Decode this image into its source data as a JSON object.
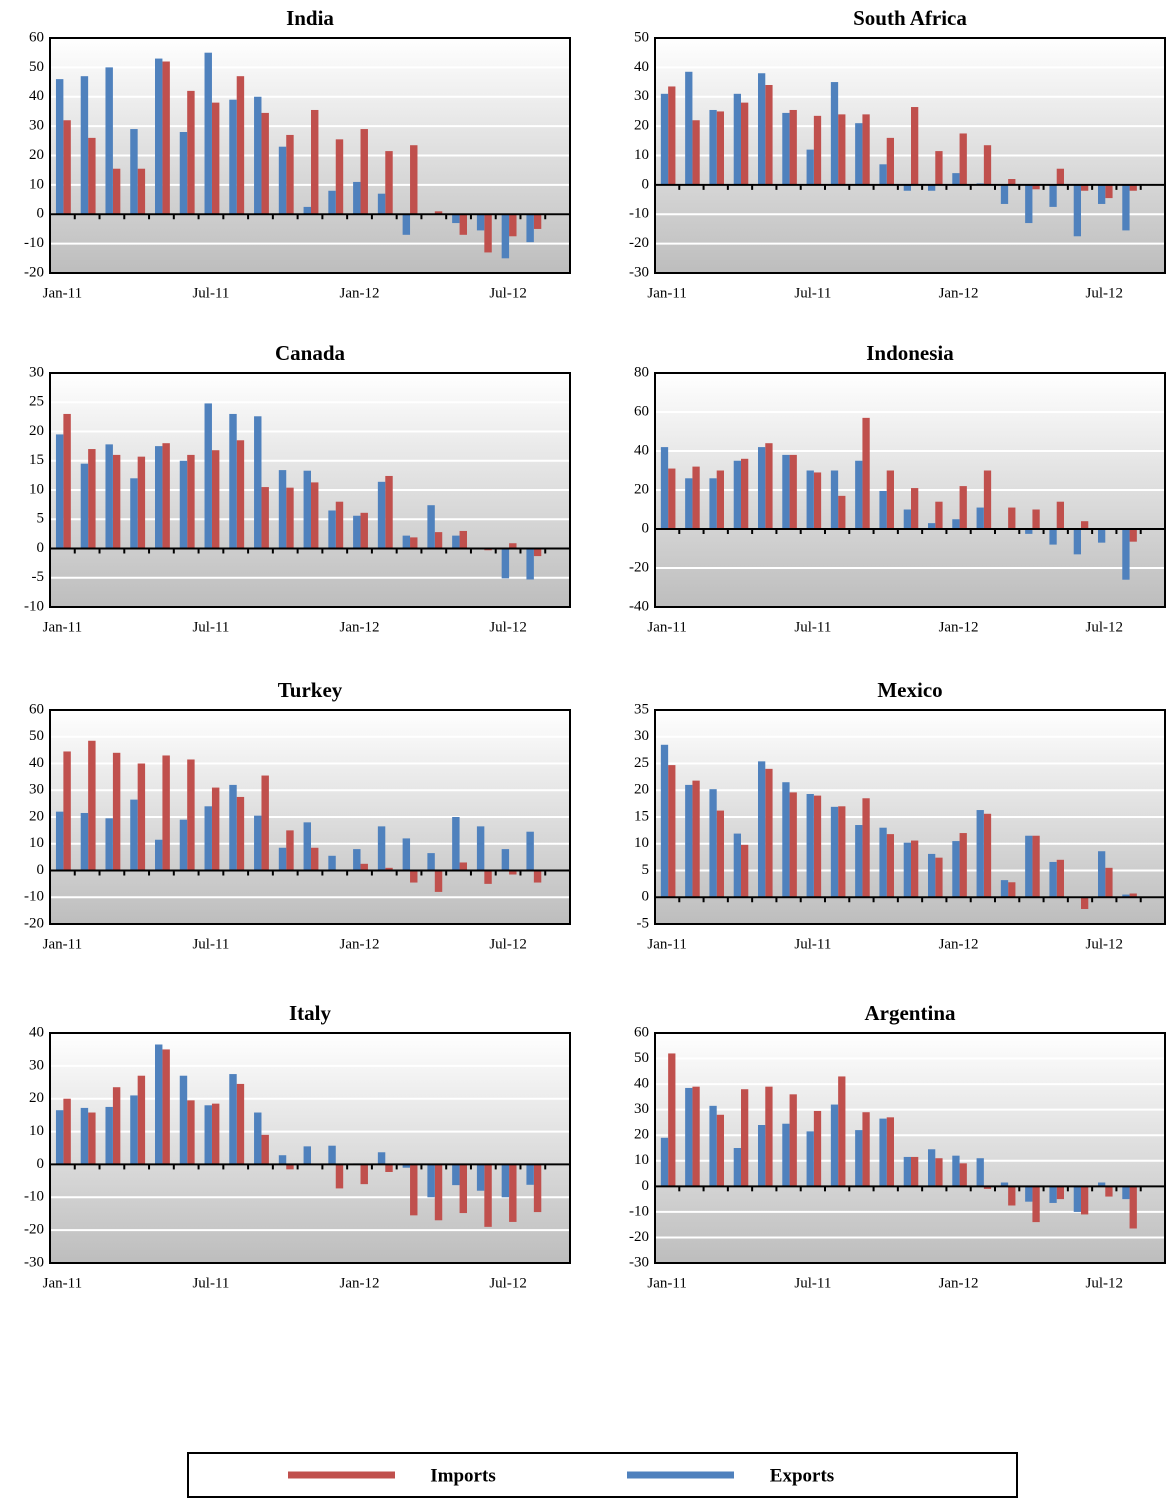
{
  "chart_data": [
    {
      "type": "bar",
      "title": "India",
      "categories": [
        "Jan-11",
        null,
        null,
        null,
        null,
        null,
        "Jul-11",
        null,
        null,
        null,
        null,
        null,
        "Jan-12",
        null,
        null,
        null,
        null,
        null,
        "Jul-12",
        null
      ],
      "series": [
        {
          "name": "Imports",
          "color": "#c0504d",
          "values": [
            32,
            26,
            15.5,
            15.5,
            52,
            42,
            38,
            47,
            34.5,
            27,
            35.5,
            25.5,
            29,
            21.5,
            23.5,
            1,
            -7,
            -13,
            -7.5,
            -5
          ]
        },
        {
          "name": "Exports",
          "color": "#4f81bd",
          "values": [
            46,
            47,
            50,
            29,
            53,
            28,
            55,
            39,
            40,
            23,
            2.5,
            8,
            11,
            7,
            -7,
            0,
            -3,
            -5.5,
            -15,
            -9.5
          ]
        }
      ],
      "ylim": [
        -20,
        60
      ],
      "yticks": [
        -20,
        -10,
        0,
        10,
        20,
        30,
        40,
        50,
        60
      ]
    },
    {
      "type": "bar",
      "title": "South Africa",
      "categories": [
        "Jan-11",
        null,
        null,
        null,
        null,
        null,
        "Jul-11",
        null,
        null,
        null,
        null,
        null,
        "Jan-12",
        null,
        null,
        null,
        null,
        null,
        "Jul-12",
        null
      ],
      "series": [
        {
          "name": "Imports",
          "color": "#c0504d",
          "values": [
            33.5,
            22,
            25,
            28,
            34,
            25.5,
            23.5,
            24,
            24,
            16,
            26.5,
            11.5,
            17.5,
            13.5,
            2,
            -1.5,
            5.5,
            -2,
            -4.5,
            -2
          ]
        },
        {
          "name": "Exports",
          "color": "#4f81bd",
          "values": [
            31,
            38.5,
            25.5,
            31,
            38,
            24.5,
            12,
            35,
            21,
            7,
            -2,
            -2,
            4,
            0.5,
            -6.5,
            -13,
            -7.5,
            -17.5,
            -6.5,
            -15.5
          ]
        }
      ],
      "ylim": [
        -30,
        50
      ],
      "yticks": [
        -30,
        -20,
        -10,
        0,
        10,
        20,
        30,
        40,
        50
      ]
    },
    {
      "type": "bar",
      "title": "Canada",
      "categories": [
        "Jan-11",
        null,
        null,
        null,
        null,
        null,
        "Jul-11",
        null,
        null,
        null,
        null,
        null,
        "Jan-12",
        null,
        null,
        null,
        null,
        null,
        "Jul-12",
        null
      ],
      "series": [
        {
          "name": "Imports",
          "color": "#c0504d",
          "values": [
            23,
            17,
            16,
            15.7,
            18,
            16,
            16.8,
            18.5,
            10.5,
            10.4,
            11.3,
            8,
            6.1,
            12.4,
            1.9,
            2.8,
            3,
            -0.3,
            0.9,
            -1.3
          ]
        },
        {
          "name": "Exports",
          "color": "#4f81bd",
          "values": [
            19.5,
            14.5,
            17.8,
            12,
            17.5,
            15,
            24.8,
            23,
            22.6,
            13.4,
            13.3,
            6.5,
            5.6,
            11.4,
            2.2,
            7.4,
            2.2,
            0,
            -5.1,
            -5.3
          ]
        }
      ],
      "ylim": [
        -10,
        30
      ],
      "yticks": [
        -10,
        -5,
        0,
        5,
        10,
        15,
        20,
        25,
        30
      ]
    },
    {
      "type": "bar",
      "title": "Indonesia",
      "categories": [
        "Jan-11",
        null,
        null,
        null,
        null,
        null,
        "Jul-11",
        null,
        null,
        null,
        null,
        null,
        "Jan-12",
        null,
        null,
        null,
        null,
        null,
        "Jul-12",
        null
      ],
      "series": [
        {
          "name": "Imports",
          "color": "#c0504d",
          "values": [
            31,
            32,
            30,
            36,
            44,
            38,
            29,
            17,
            57,
            30,
            21,
            14,
            22,
            30,
            11,
            10,
            14,
            4,
            0,
            -6.5
          ]
        },
        {
          "name": "Exports",
          "color": "#4f81bd",
          "values": [
            42,
            26,
            26,
            35,
            42,
            38,
            30,
            30,
            35,
            19.5,
            10,
            3,
            5,
            11,
            0,
            -2.5,
            -8,
            -13,
            -7,
            -26
          ]
        }
      ],
      "ylim": [
        -40,
        80
      ],
      "yticks": [
        -40,
        -20,
        0,
        20,
        40,
        60,
        80
      ]
    },
    {
      "type": "bar",
      "title": "Turkey",
      "categories": [
        "Jan-11",
        null,
        null,
        null,
        null,
        null,
        "Jul-11",
        null,
        null,
        null,
        null,
        null,
        "Jan-12",
        null,
        null,
        null,
        null,
        null,
        "Jul-12",
        null
      ],
      "series": [
        {
          "name": "Imports",
          "color": "#c0504d",
          "values": [
            44.5,
            48.5,
            44,
            40,
            43,
            41.5,
            31,
            27.5,
            35.5,
            15,
            8.5,
            0,
            2.5,
            1,
            -4.5,
            -8,
            3,
            -5,
            -1.5,
            -4.5
          ]
        },
        {
          "name": "Exports",
          "color": "#4f81bd",
          "values": [
            22,
            21.5,
            19.5,
            26.5,
            11.5,
            19,
            24,
            32,
            20.5,
            8.5,
            18,
            5.5,
            8,
            16.5,
            12,
            6.5,
            20,
            16.5,
            8,
            14.5
          ]
        }
      ],
      "ylim": [
        -20,
        60
      ],
      "yticks": [
        -20,
        -10,
        0,
        10,
        20,
        30,
        40,
        50,
        60
      ]
    },
    {
      "type": "bar",
      "title": "Mexico",
      "categories": [
        "Jan-11",
        null,
        null,
        null,
        null,
        null,
        "Jul-11",
        null,
        null,
        null,
        null,
        null,
        "Jan-12",
        null,
        null,
        null,
        null,
        null,
        "Jul-12",
        null
      ],
      "series": [
        {
          "name": "Imports",
          "color": "#c0504d",
          "values": [
            24.7,
            21.8,
            16.2,
            9.8,
            24,
            19.6,
            19,
            17,
            18.5,
            11.8,
            10.6,
            7.4,
            12,
            15.6,
            2.8,
            11.5,
            7,
            -2.2,
            5.5,
            0.7
          ]
        },
        {
          "name": "Exports",
          "color": "#4f81bd",
          "values": [
            28.5,
            21,
            20.2,
            11.9,
            25.4,
            21.5,
            19.3,
            16.9,
            13.5,
            13,
            10.2,
            8.1,
            10.5,
            16.3,
            3.2,
            11.5,
            6.6,
            0,
            8.6,
            0.5
          ]
        }
      ],
      "ylim": [
        -5,
        35
      ],
      "yticks": [
        -5,
        0,
        5,
        10,
        15,
        20,
        25,
        30,
        35
      ]
    },
    {
      "type": "bar",
      "title": "Italy",
      "categories": [
        "Jan-11",
        null,
        null,
        null,
        null,
        null,
        "Jul-11",
        null,
        null,
        null,
        null,
        null,
        "Jan-12",
        null,
        null,
        null,
        null,
        null,
        "Jul-12",
        null
      ],
      "series": [
        {
          "name": "Imports",
          "color": "#c0504d",
          "values": [
            20,
            15.8,
            23.5,
            27,
            35,
            19.5,
            18.5,
            24.5,
            9,
            -1.5,
            0,
            -7.3,
            -6,
            -2.3,
            -15.5,
            -17,
            -14.8,
            -19,
            -17.5,
            -14.5
          ]
        },
        {
          "name": "Exports",
          "color": "#4f81bd",
          "values": [
            16.5,
            17.2,
            17.5,
            21,
            36.5,
            27,
            18,
            27.5,
            15.8,
            2.8,
            5.5,
            5.7,
            0.3,
            3.7,
            -1,
            -10,
            -6.3,
            -8,
            -10,
            -6.2
          ]
        }
      ],
      "ylim": [
        -30,
        40
      ],
      "yticks": [
        -30,
        -20,
        -10,
        0,
        10,
        20,
        30,
        40
      ]
    },
    {
      "type": "bar",
      "title": "Argentina",
      "categories": [
        "Jan-11",
        null,
        null,
        null,
        null,
        null,
        "Jul-11",
        null,
        null,
        null,
        null,
        null,
        "Jan-12",
        null,
        null,
        null,
        null,
        null,
        "Jul-12",
        null
      ],
      "series": [
        {
          "name": "Imports",
          "color": "#c0504d",
          "values": [
            52,
            39,
            28,
            38,
            39,
            36,
            29.5,
            43,
            29,
            27,
            11.5,
            11,
            9,
            -1,
            -7.5,
            -14,
            -5,
            -11,
            -4,
            -16.5
          ]
        },
        {
          "name": "Exports",
          "color": "#4f81bd",
          "values": [
            19,
            38.5,
            31.5,
            15,
            24,
            24.5,
            21.5,
            32,
            22,
            26.5,
            11.5,
            14.5,
            12,
            11,
            1.5,
            -6,
            -6.5,
            -10,
            1.5,
            -5
          ]
        }
      ],
      "ylim": [
        -30,
        60
      ],
      "yticks": [
        -30,
        -20,
        -10,
        0,
        10,
        20,
        30,
        40,
        50,
        60
      ]
    }
  ]
}
